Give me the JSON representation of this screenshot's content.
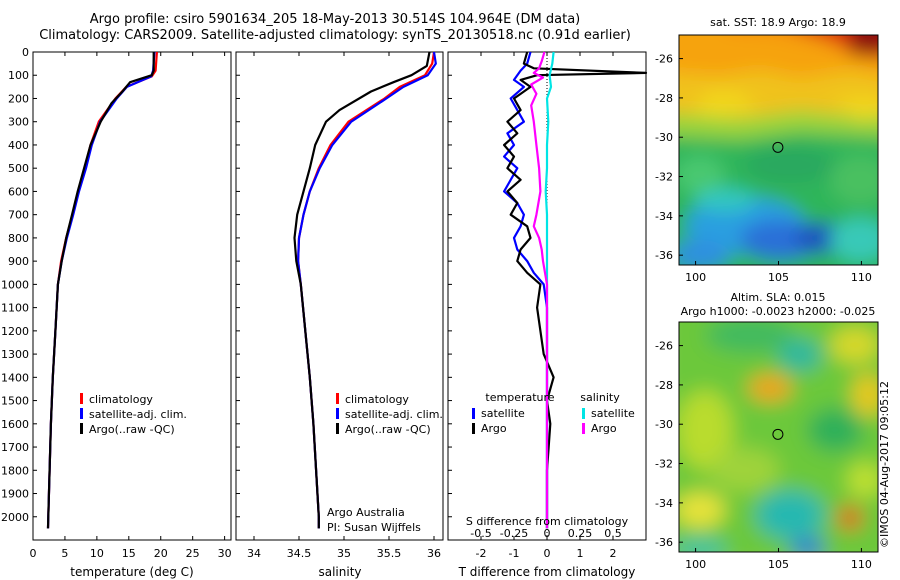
{
  "header": {
    "title_line1": "Argo profile: csiro 5901634_205 18-May-2013 30.514S 104.964E (DM data)",
    "title_line2": "Climatology: CARS2009. Satellite-adjusted climatology: synTS_20130518.nc (0.91d earlier)"
  },
  "credits": {
    "group": "Argo Australia",
    "pi": "PI: Susan Wijffels",
    "stamp": "©IMOS 04-Aug-2017 09:05:12"
  },
  "colors": {
    "climatology": "#ff0000",
    "satellite_adj": "#0000ff",
    "argo": "#000000",
    "satellite_salinity": "#00e5e5",
    "argo_salinity": "#ff00ff"
  },
  "chart_data": [
    {
      "type": "line",
      "panel": "temperature",
      "xlabel": "temperature (deg C)",
      "ylabel": "",
      "xlim": [
        0,
        31
      ],
      "ylim": [
        2100,
        0
      ],
      "y_inverted": true,
      "xticks": [
        0,
        5,
        10,
        15,
        20,
        25,
        30
      ],
      "yticks": [
        0,
        100,
        200,
        300,
        400,
        500,
        600,
        700,
        800,
        900,
        1000,
        1100,
        1200,
        1300,
        1400,
        1500,
        1600,
        1700,
        1800,
        1900,
        2000
      ],
      "legend": {
        "position": "lower-center",
        "entries": [
          "climatology",
          "satellite-adj. clim.",
          "Argo(..raw -QC)"
        ]
      },
      "series": [
        {
          "name": "climatology",
          "depth": [
            0,
            80,
            105,
            150,
            200,
            300,
            400,
            500,
            600,
            700,
            800,
            900,
            1000,
            1200,
            1400,
            1600,
            1800,
            2000,
            2050
          ],
          "values": [
            19.4,
            19.2,
            18.6,
            14.6,
            12.9,
            10.3,
            9.0,
            8.1,
            7.1,
            6.2,
            5.2,
            4.4,
            3.9,
            3.5,
            3.1,
            2.8,
            2.6,
            2.4,
            2.35
          ]
        },
        {
          "name": "satellite-adj. clim.",
          "depth": [
            0,
            80,
            105,
            150,
            200,
            300,
            400,
            500,
            600,
            700,
            800,
            900,
            1000,
            1200,
            1400,
            1600,
            1800,
            2000,
            2050
          ],
          "values": [
            19.0,
            18.8,
            18.5,
            14.7,
            13.1,
            10.5,
            9.2,
            8.3,
            7.2,
            6.3,
            5.3,
            4.5,
            3.9,
            3.5,
            3.1,
            2.8,
            2.6,
            2.4,
            2.35
          ]
        },
        {
          "name": "Argo(..raw -QC)",
          "depth": [
            0,
            80,
            100,
            130,
            170,
            220,
            300,
            400,
            500,
            600,
            700,
            800,
            900,
            1000,
            1200,
            1400,
            1600,
            1800,
            2000,
            2050
          ],
          "values": [
            18.9,
            18.9,
            18.6,
            15.2,
            14.0,
            12.3,
            10.6,
            9.0,
            8.0,
            7.0,
            6.1,
            5.2,
            4.5,
            3.9,
            3.5,
            3.1,
            2.8,
            2.6,
            2.4,
            2.35
          ]
        }
      ]
    },
    {
      "type": "line",
      "panel": "salinity",
      "xlabel": "salinity",
      "ylabel": "",
      "xlim": [
        33.8,
        36.1
      ],
      "ylim": [
        2100,
        0
      ],
      "y_inverted": true,
      "xticks": [
        34,
        34.5,
        35,
        35.5,
        36
      ],
      "legend": {
        "position": "lower-center",
        "entries": [
          "climatology",
          "satellite-adj. clim.",
          "Argo(..raw -QC)"
        ]
      },
      "series": [
        {
          "name": "climatology",
          "depth": [
            0,
            50,
            100,
            150,
            200,
            300,
            400,
            500,
            600,
            700,
            800,
            900,
            1000,
            1200,
            1400,
            1600,
            1800,
            2000,
            2050
          ],
          "values": [
            36.0,
            35.98,
            35.9,
            35.62,
            35.45,
            35.05,
            34.85,
            34.72,
            34.62,
            34.55,
            34.5,
            34.49,
            34.52,
            34.57,
            34.62,
            34.66,
            34.69,
            34.72,
            34.72
          ]
        },
        {
          "name": "satellite-adj. clim.",
          "depth": [
            0,
            50,
            100,
            150,
            200,
            300,
            400,
            500,
            600,
            700,
            800,
            900,
            1000,
            1200,
            1400,
            1600,
            1800,
            2000,
            2050
          ],
          "values": [
            36.0,
            36.02,
            35.93,
            35.66,
            35.47,
            35.08,
            34.87,
            34.73,
            34.62,
            34.55,
            34.5,
            34.49,
            34.52,
            34.57,
            34.62,
            34.66,
            34.69,
            34.72,
            34.72
          ]
        },
        {
          "name": "Argo(..raw -QC)",
          "depth": [
            0,
            60,
            100,
            130,
            170,
            250,
            300,
            400,
            500,
            600,
            700,
            800,
            900,
            1000,
            1200,
            1400,
            1600,
            1800,
            2000,
            2050
          ],
          "values": [
            35.95,
            35.92,
            35.75,
            35.55,
            35.3,
            34.95,
            34.8,
            34.68,
            34.62,
            34.55,
            34.48,
            34.45,
            34.47,
            34.52,
            34.57,
            34.62,
            34.66,
            34.69,
            34.72,
            34.72
          ]
        }
      ]
    },
    {
      "type": "line",
      "panel": "difference",
      "xlabel": "T difference from climatology",
      "x2label": "S difference from climatology",
      "xlim": [
        -3,
        3
      ],
      "x2lim": [
        -0.75,
        0.75
      ],
      "ylim": [
        2100,
        0
      ],
      "y_inverted": true,
      "xticks": [
        -2,
        -1,
        0,
        1,
        2
      ],
      "x2ticks": [
        -0.5,
        -0.25,
        0,
        0.25,
        0.5
      ],
      "x2ticklabels": [
        "-0.5",
        "-0.25",
        "0",
        "0.25",
        "0.5"
      ],
      "legend": {
        "position": "lower",
        "groups": [
          {
            "title": "temperature",
            "entries": [
              "satellite",
              "Argo"
            ]
          },
          {
            "title": "salinity",
            "entries": [
              "satellite",
              "Argo"
            ]
          }
        ]
      },
      "series": [
        {
          "name": "temperature satellite",
          "depth": [
            0,
            50,
            80,
            120,
            150,
            200,
            250,
            300,
            350,
            400,
            450,
            500,
            550,
            600,
            650,
            700,
            750,
            800,
            850,
            900,
            950,
            1000,
            1100,
            1300,
            1500,
            2050
          ],
          "values": [
            -0.5,
            -0.6,
            -0.8,
            -1.0,
            -0.7,
            -1.1,
            -0.9,
            -0.7,
            -1.2,
            -1.0,
            -1.3,
            -0.9,
            -1.1,
            -1.3,
            -0.9,
            -0.7,
            -0.8,
            -1.0,
            -0.9,
            -0.6,
            -0.4,
            -0.1,
            0.0,
            0.0,
            0.0,
            0.0
          ]
        },
        {
          "name": "temperature Argo",
          "depth": [
            0,
            50,
            70,
            90,
            100,
            120,
            150,
            200,
            250,
            300,
            350,
            400,
            450,
            500,
            550,
            600,
            650,
            700,
            750,
            800,
            850,
            900,
            950,
            1000,
            1100,
            1200,
            1300,
            1400,
            1500,
            1600,
            1800,
            2000,
            2050
          ],
          "values": [
            -0.6,
            -0.7,
            -0.4,
            3.0,
            -0.3,
            -0.8,
            -0.5,
            -1.0,
            -0.8,
            -1.2,
            -0.9,
            -1.3,
            -1.0,
            -1.2,
            -0.8,
            -1.2,
            -0.9,
            -1.1,
            -0.6,
            -0.5,
            -0.8,
            -0.9,
            -0.6,
            -0.2,
            -0.3,
            -0.2,
            -0.1,
            0.2,
            0.0,
            0.1,
            0.0,
            0.0,
            0.0
          ]
        },
        {
          "name": "salinity satellite",
          "depth": [
            0,
            50,
            100,
            150,
            200,
            300,
            400,
            500,
            600,
            700,
            800,
            900,
            1000,
            1200,
            1500,
            2050
          ],
          "values": [
            0.05,
            0.04,
            0.02,
            0.03,
            0.0,
            0.01,
            0.0,
            0.0,
            -0.01,
            0.0,
            0.0,
            0.0,
            0.0,
            0.0,
            0.0,
            0.0
          ]
        },
        {
          "name": "salinity Argo",
          "depth": [
            0,
            40,
            70,
            90,
            110,
            140,
            180,
            230,
            300,
            400,
            500,
            600,
            700,
            750,
            800,
            850,
            900,
            1000,
            1100,
            1300,
            1500,
            2050
          ],
          "values": [
            -0.02,
            -0.04,
            -0.06,
            -0.1,
            -0.03,
            -0.12,
            -0.08,
            -0.12,
            -0.1,
            -0.08,
            -0.06,
            -0.05,
            -0.08,
            -0.1,
            -0.06,
            -0.04,
            -0.03,
            0.0,
            0.0,
            0.0,
            0.0,
            0.0
          ]
        }
      ]
    },
    {
      "type": "heatmap",
      "panel": "sst-map",
      "title": "sat. SST: 18.9  Argo: 18.9",
      "xlim": [
        99,
        111
      ],
      "ylim": [
        -36.5,
        -24.8
      ],
      "xticks": [
        100,
        105,
        110
      ],
      "yticks": [
        -26,
        -28,
        -30,
        -32,
        -34,
        -36
      ],
      "marker": {
        "lon": 104.964,
        "lat": -30.514
      }
    },
    {
      "type": "heatmap",
      "panel": "sla-map",
      "title": "Altim. SLA: 0.015",
      "subtitle": "Argo h1000: -0.0023  h2000: -0.025",
      "xlim": [
        99,
        111
      ],
      "ylim": [
        -36.5,
        -24.8
      ],
      "xticks": [
        100,
        105,
        110
      ],
      "yticks": [
        -26,
        -28,
        -30,
        -32,
        -34,
        -36
      ],
      "marker": {
        "lon": 104.964,
        "lat": -30.514
      }
    }
  ]
}
